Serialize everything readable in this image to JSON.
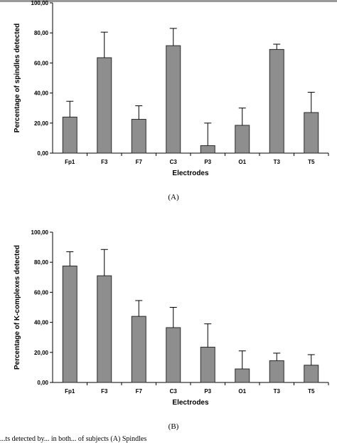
{
  "colors": {
    "bar_fill": "#8e8e8e",
    "bar_stroke": "#2b2b2b",
    "axis": "#000000",
    "top_strip": "#9a9a9a"
  },
  "chart_data": [
    {
      "type": "bar",
      "categories": [
        "Fp1",
        "F3",
        "F7",
        "C3",
        "P3",
        "O1",
        "T3",
        "T5"
      ],
      "values": [
        24,
        63.5,
        22.5,
        71.5,
        5,
        18.5,
        69,
        27
      ],
      "error_upper": [
        34.5,
        80.5,
        31.5,
        83,
        20,
        30,
        72.5,
        40.5
      ],
      "ylim": [
        0,
        100
      ],
      "yticks": [
        "0,00",
        "20,00",
        "40,00",
        "60,00",
        "80,00",
        "100,00"
      ],
      "xlabel": "Electrodes",
      "ylabel": "Percentage of spindles detected",
      "caption": "(A)",
      "grid": false
    },
    {
      "type": "bar",
      "categories": [
        "Fp1",
        "F3",
        "F7",
        "C3",
        "P3",
        "O1",
        "T3",
        "T5"
      ],
      "values": [
        77.5,
        71,
        44,
        36.5,
        23.5,
        9,
        14.5,
        11.5
      ],
      "error_upper": [
        87,
        88.5,
        54.5,
        50,
        39,
        21,
        19.5,
        18.5
      ],
      "ylim": [
        0,
        100
      ],
      "yticks": [
        "0,00",
        "20,00",
        "40,00",
        "60,00",
        "80,00",
        "100,00"
      ],
      "xlabel": "Electrodes",
      "ylabel": "Percentage of K-complexes detected",
      "caption": "(B)",
      "grid": false
    }
  ],
  "bottom_caption": "...ts detected by... in both... of subjects (A) Spindles"
}
